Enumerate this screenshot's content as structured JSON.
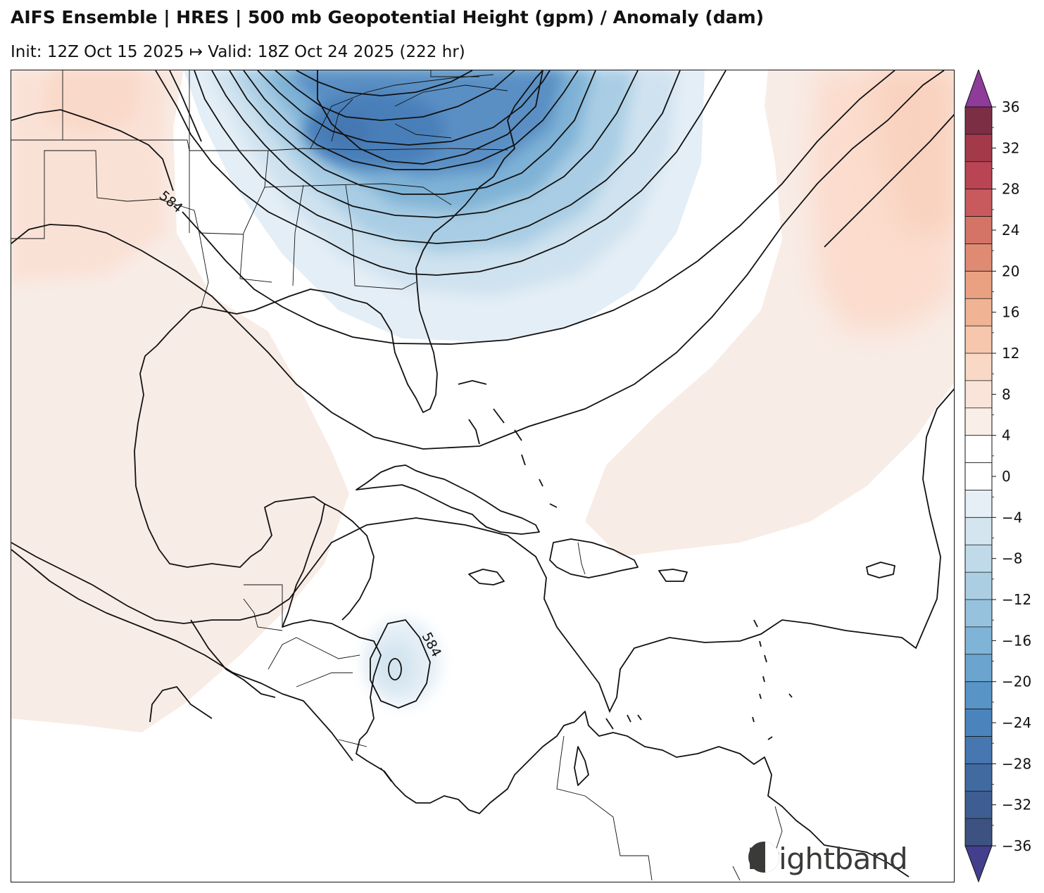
{
  "header": {
    "title": "AIFS Ensemble | HRES | 500 mb Geopotential Height (gpm) / Anomaly (dam)",
    "subtitle": "Init: 12Z Oct 15 2025 ↦ Valid: 18Z Oct 24 2025 (222 hr)"
  },
  "map": {
    "contour_labels": [
      "584",
      "584"
    ],
    "colors": {
      "trough_light": "#e4eef6",
      "trough_mid": "#a9cde4",
      "trough_deep": "#5a8fc4",
      "trough_core": "#4a7fb9",
      "ridge_light": "#f8ece6",
      "ridge_mid": "#fbdccd",
      "ridge_strong": "#f8cfb8",
      "land_line": "#111111"
    }
  },
  "colorbar": {
    "ticks": [
      "36",
      "32",
      "28",
      "24",
      "20",
      "16",
      "12",
      "8",
      "4",
      "0",
      "−4",
      "−8",
      "−12",
      "−16",
      "−20",
      "−24",
      "−28",
      "−32",
      "−36"
    ],
    "colors_top_to_bottom": [
      "#7c2e45",
      "#a33a4a",
      "#b94454",
      "#c85a5e",
      "#d47467",
      "#df8b73",
      "#e9a182",
      "#f0b394",
      "#f6c7ad",
      "#f9d8c6",
      "#fae4d9",
      "#f9eee8",
      "#ffffff",
      "#ffffff",
      "#e6eff6",
      "#d4e5f0",
      "#c0dae9",
      "#abcee3",
      "#96c2de",
      "#80b4d7",
      "#6ba4ce",
      "#5894c6",
      "#4b84bc",
      "#4677b0",
      "#416aa1",
      "#3e5d92",
      "#3d5280"
    ],
    "over_color": "#8e3b9a",
    "under_color": "#433f8c"
  },
  "brand": {
    "name": "Brightband"
  }
}
